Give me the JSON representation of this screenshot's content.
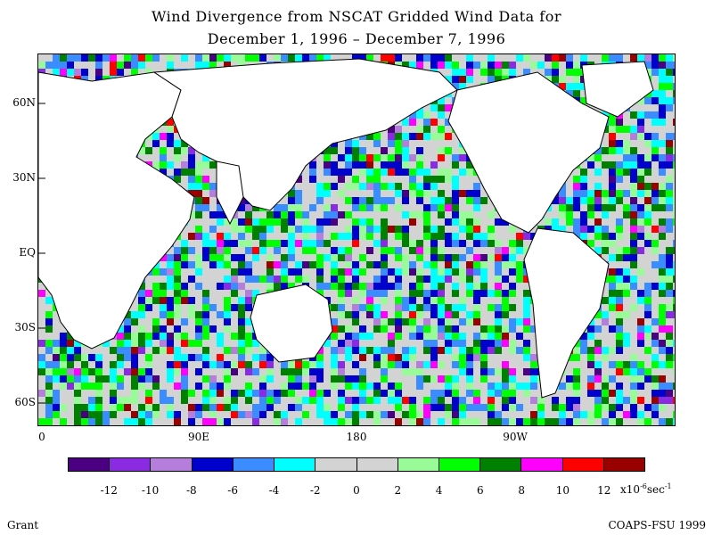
{
  "title": {
    "line1": "Wind Divergence from NSCAT Gridded Wind Data for",
    "line2": "December 1, 1996 – December 7, 1996"
  },
  "map": {
    "lat_labels": [
      "60N",
      "30N",
      "EQ",
      "30S",
      "60S"
    ],
    "lon_labels": [
      "0",
      "90E",
      "180",
      "90W"
    ]
  },
  "colorbar": {
    "colors": [
      "#4b0082",
      "#8a2be2",
      "#b57edc",
      "#0000cd",
      "#3a8cff",
      "#00ffff",
      "#d3d3d3",
      "#d3d3d3",
      "#98fb98",
      "#00ff00",
      "#008000",
      "#ff00ff",
      "#ff0000",
      "#990000"
    ],
    "ticks": [
      "-12",
      "-10",
      "-8",
      "-6",
      "-4",
      "-2",
      "0",
      "2",
      "4",
      "6",
      "8",
      "10",
      "12"
    ],
    "units_prefix": "x10",
    "units_exp": "-6",
    "units_suffix": "sec",
    "units_exp2": "-1"
  },
  "footer": {
    "left": "Grant",
    "right": "COAPS-FSU 1999"
  }
}
